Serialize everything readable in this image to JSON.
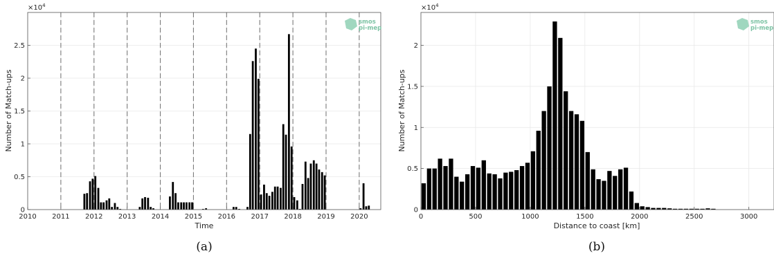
{
  "chart_data": [
    {
      "type": "bar",
      "panel_label": "(a)",
      "xlabel": "Time",
      "ylabel": "Number of Match-ups",
      "y_multiplier": "×10",
      "y_multiplier_exp": "4",
      "xlim": [
        2010.0,
        2020.65
      ],
      "ylim": [
        0,
        30000
      ],
      "xticks": [
        "2010",
        "2011",
        "2012",
        "2013",
        "2014",
        "2015",
        "2016",
        "2017",
        "2018",
        "2019",
        "2020"
      ],
      "yticks": [
        "0",
        "0.5",
        "1",
        "1.5",
        "2",
        "2.5"
      ],
      "vlines": [
        2011,
        2012,
        2013,
        2014,
        2015,
        2016,
        2017,
        2018,
        2019,
        2020
      ],
      "logo": [
        "smos",
        "pi-mep"
      ],
      "x": [
        2011.71,
        2011.79,
        2011.88,
        2011.96,
        2012.04,
        2012.13,
        2012.21,
        2012.29,
        2012.38,
        2012.46,
        2012.54,
        2012.63,
        2012.71,
        2012.79,
        2013.38,
        2013.46,
        2013.54,
        2013.63,
        2013.71,
        2013.79,
        2014.29,
        2014.38,
        2014.46,
        2014.54,
        2014.63,
        2014.71,
        2014.79,
        2014.88,
        2014.96,
        2015.29,
        2015.38,
        2016.21,
        2016.29,
        2016.38,
        2016.63,
        2016.71,
        2016.79,
        2016.88,
        2016.96,
        2017.04,
        2017.13,
        2017.21,
        2017.29,
        2017.38,
        2017.46,
        2017.54,
        2017.63,
        2017.71,
        2017.79,
        2017.88,
        2017.96,
        2018.04,
        2018.13,
        2018.21,
        2018.29,
        2018.38,
        2018.46,
        2018.54,
        2018.63,
        2018.71,
        2018.79,
        2018.88,
        2018.96,
        2020.04,
        2020.13,
        2020.21,
        2020.29
      ],
      "values": [
        2400,
        2500,
        4300,
        4700,
        5100,
        3300,
        1100,
        1100,
        1400,
        1700,
        400,
        1000,
        400,
        100,
        400,
        1700,
        1900,
        1800,
        400,
        200,
        2000,
        4200,
        2500,
        1100,
        1100,
        1100,
        1100,
        1100,
        1100,
        100,
        200,
        400,
        400,
        100,
        400,
        11500,
        22600,
        24500,
        19900,
        2300,
        3800,
        2500,
        2100,
        2700,
        3500,
        3500,
        3300,
        13000,
        11400,
        26700,
        9600,
        1900,
        1400,
        100,
        3900,
        7300,
        4800,
        7000,
        7500,
        7000,
        6100,
        5700,
        5200,
        200,
        4000,
        500,
        600
      ]
    },
    {
      "type": "bar",
      "panel_label": "(b)",
      "xlabel": "Distance to coast [km]",
      "ylabel": "Number of Match-ups",
      "y_multiplier": "×10",
      "y_multiplier_exp": "4",
      "xlim": [
        0,
        3230
      ],
      "ylim": [
        0,
        24000
      ],
      "xticks": [
        "0",
        "500",
        "1000",
        "1500",
        "2000",
        "2500",
        "3000"
      ],
      "xtick_values": [
        0,
        500,
        1000,
        1500,
        2000,
        2500,
        3000
      ],
      "yticks": [
        "0",
        "0.5",
        "1",
        "1.5",
        "2"
      ],
      "logo": [
        "smos",
        "pi-mep"
      ],
      "bin_width": 50,
      "x": [
        25,
        75,
        125,
        175,
        225,
        275,
        325,
        375,
        425,
        475,
        525,
        575,
        625,
        675,
        725,
        775,
        825,
        875,
        925,
        975,
        1025,
        1075,
        1125,
        1175,
        1225,
        1275,
        1325,
        1375,
        1425,
        1475,
        1525,
        1575,
        1625,
        1675,
        1725,
        1775,
        1825,
        1875,
        1925,
        1975,
        2025,
        2075,
        2125,
        2175,
        2225,
        2275,
        2325,
        2375,
        2425,
        2475,
        2525,
        2575,
        2625,
        2675
      ],
      "values": [
        3200,
        5000,
        5000,
        6200,
        5300,
        6200,
        4000,
        3400,
        4300,
        5300,
        5100,
        6000,
        4400,
        4300,
        3800,
        4500,
        4600,
        4800,
        5300,
        5700,
        7100,
        9600,
        12000,
        15000,
        22900,
        20900,
        14400,
        12000,
        11600,
        10800,
        7000,
        4900,
        3700,
        3500,
        4700,
        4100,
        4900,
        5100,
        2200,
        800,
        400,
        300,
        200,
        200,
        200,
        150,
        100,
        100,
        100,
        100,
        100,
        100,
        150,
        100
      ]
    }
  ]
}
